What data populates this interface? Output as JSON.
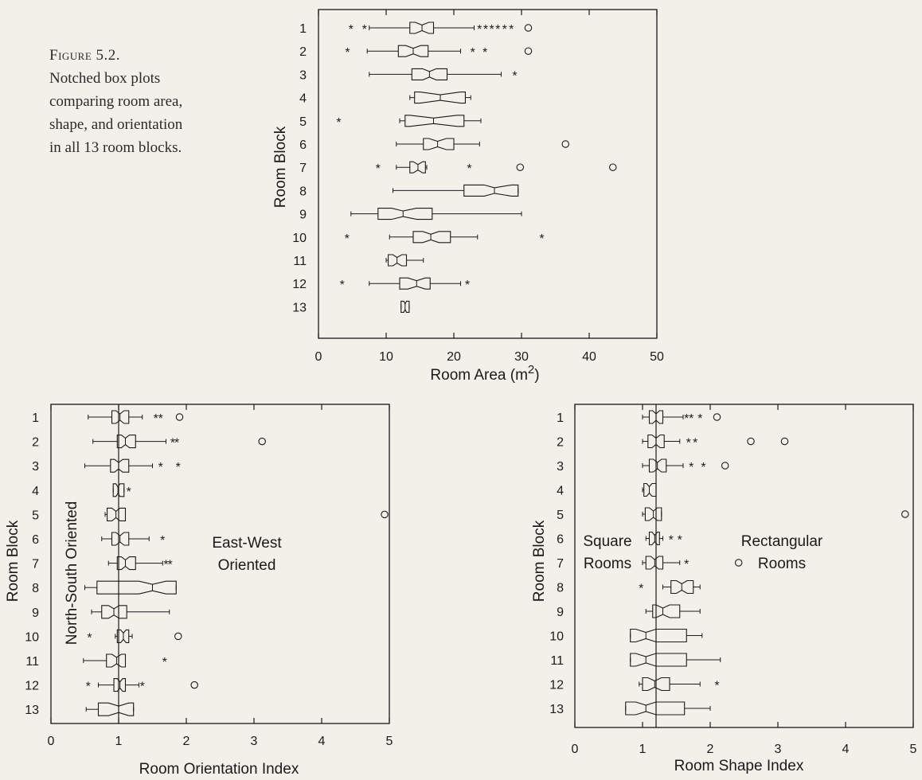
{
  "caption": {
    "figure_label": "Figure 5.2.",
    "lines": [
      "Notched box plots",
      "comparing room area,",
      "shape, and orientation",
      "in all 13 room blocks."
    ]
  },
  "chart_data": [
    {
      "type": "box",
      "xlabel": "Room Area (m2)",
      "ylabel": "Room Block",
      "xlim": [
        0,
        50
      ],
      "xticks": [
        "0",
        "10",
        "20",
        "30",
        "40",
        "50"
      ],
      "categories": [
        "1",
        "2",
        "3",
        "4",
        "5",
        "6",
        "7",
        "8",
        "9",
        "10",
        "11",
        "12",
        "13"
      ],
      "boxes": [
        {
          "whisker": [
            7.5,
            23
          ],
          "box": [
            13.5,
            17
          ],
          "median": 15.3,
          "notch": [
            14.3,
            16.3
          ],
          "stars": [
            4.8,
            6.8,
            23.8,
            24.7,
            25.6,
            26.5,
            27.5,
            28.5
          ],
          "circles": [
            31
          ]
        },
        {
          "whisker": [
            7.2,
            21
          ],
          "box": [
            11.8,
            16.2
          ],
          "median": 14,
          "notch": [
            12.9,
            15.1
          ],
          "stars": [
            4.3,
            22.8,
            24.6
          ],
          "circles": [
            31
          ]
        },
        {
          "whisker": [
            7.5,
            27
          ],
          "box": [
            13.8,
            19
          ],
          "median": 16.4,
          "notch": [
            15.4,
            17.4
          ],
          "stars": [
            29
          ],
          "circles": []
        },
        {
          "whisker": [
            13.5,
            22.5
          ],
          "box": [
            14.2,
            21.7
          ],
          "median": 18,
          "notch": [
            15,
            21
          ],
          "stars": [],
          "circles": []
        },
        {
          "whisker": [
            12,
            24
          ],
          "box": [
            12.8,
            21.5
          ],
          "median": 17,
          "notch": [
            13.5,
            20.5
          ],
          "stars": [
            3
          ],
          "circles": []
        },
        {
          "whisker": [
            11.5,
            23.8
          ],
          "box": [
            15.5,
            20
          ],
          "median": 17.6,
          "notch": [
            16.3,
            18.9
          ],
          "stars": [],
          "circles": [
            36.5
          ]
        },
        {
          "whisker": [
            11.5,
            16
          ],
          "box": [
            13.5,
            15.8
          ],
          "median": 14.7,
          "notch": [
            14,
            15.4
          ],
          "stars": [
            8.8,
            22.3
          ],
          "circles": [
            29.8,
            43.5
          ]
        },
        {
          "whisker": [
            11,
            29.5
          ],
          "box": [
            21.5,
            29.5
          ],
          "median": 26,
          "notch": [
            24.5,
            28.5
          ],
          "stars": [],
          "circles": []
        },
        {
          "whisker": [
            4.8,
            30
          ],
          "box": [
            8.8,
            16.8
          ],
          "median": 12.5,
          "notch": [
            10.8,
            14.5
          ],
          "stars": [],
          "circles": []
        },
        {
          "whisker": [
            10.5,
            23.5
          ],
          "box": [
            14,
            19.5
          ],
          "median": 16.6,
          "notch": [
            15.4,
            17.8
          ],
          "stars": [
            4.2,
            33
          ],
          "circles": []
        },
        {
          "whisker": [
            10,
            15.5
          ],
          "box": [
            10.3,
            13
          ],
          "median": 11.6,
          "notch": [
            11,
            12.3
          ],
          "stars": [],
          "circles": []
        },
        {
          "whisker": [
            7.5,
            21
          ],
          "box": [
            12,
            16.5
          ],
          "median": 14.5,
          "notch": [
            13.2,
            15.8
          ],
          "stars": [
            3.5,
            22
          ],
          "circles": []
        },
        {
          "whisker": [
            12.2,
            13.4
          ],
          "box": [
            12.2,
            13.4
          ],
          "median": 12.8,
          "notch": [
            12.6,
            13
          ],
          "stars": [],
          "circles": []
        }
      ]
    },
    {
      "type": "box",
      "xlabel": "Room Orientation Index",
      "ylabel": "Room Block",
      "xlim": [
        0,
        5
      ],
      "xticks": [
        "0",
        "1",
        "2",
        "3",
        "4",
        "5"
      ],
      "reference_line": 1,
      "annotations": [
        "North-South Oriented",
        "East-West",
        "Oriented"
      ],
      "categories": [
        "1",
        "2",
        "3",
        "4",
        "5",
        "6",
        "7",
        "8",
        "9",
        "10",
        "11",
        "12",
        "13"
      ],
      "boxes": [
        {
          "whisker": [
            0.55,
            1.35
          ],
          "box": [
            0.9,
            1.15
          ],
          "median": 1.02,
          "notch": [
            0.96,
            1.08
          ],
          "stars": [
            1.55,
            1.62
          ],
          "circles": [
            1.9
          ]
        },
        {
          "whisker": [
            0.62,
            1.7
          ],
          "box": [
            0.98,
            1.25
          ],
          "median": 1.1,
          "notch": [
            1.04,
            1.16
          ],
          "stars": [
            1.8,
            1.86
          ],
          "circles": [
            3.12
          ]
        },
        {
          "whisker": [
            0.5,
            1.5
          ],
          "box": [
            0.88,
            1.15
          ],
          "median": 1.0,
          "notch": [
            0.94,
            1.06
          ],
          "stars": [
            1.62,
            1.88
          ],
          "circles": []
        },
        {
          "whisker": [
            0.92,
            1.08
          ],
          "box": [
            0.92,
            1.08
          ],
          "median": 0.99,
          "notch": [
            0.96,
            1.02
          ],
          "stars": [
            1.15
          ],
          "circles": []
        },
        {
          "whisker": [
            0.8,
            1.1
          ],
          "box": [
            0.83,
            1.1
          ],
          "median": 0.96,
          "notch": [
            0.9,
            1.02
          ],
          "stars": [],
          "circles": [
            4.93
          ]
        },
        {
          "whisker": [
            0.75,
            1.45
          ],
          "box": [
            0.9,
            1.15
          ],
          "median": 1.02,
          "notch": [
            0.96,
            1.08
          ],
          "stars": [
            1.65
          ],
          "circles": []
        },
        {
          "whisker": [
            0.85,
            1.65
          ],
          "box": [
            0.98,
            1.25
          ],
          "median": 1.1,
          "notch": [
            1.04,
            1.16
          ],
          "stars": [
            1.7,
            1.76
          ],
          "circles": []
        },
        {
          "whisker": [
            0.5,
            1.85
          ],
          "box": [
            0.68,
            1.85
          ],
          "median": 1.5,
          "notch": [
            1.3,
            1.7
          ],
          "stars": [],
          "circles": []
        },
        {
          "whisker": [
            0.6,
            1.75
          ],
          "box": [
            0.75,
            1.12
          ],
          "median": 0.93,
          "notch": [
            0.85,
            1.01
          ],
          "stars": [],
          "circles": []
        },
        {
          "whisker": [
            0.95,
            1.2
          ],
          "box": [
            0.98,
            1.15
          ],
          "median": 1.07,
          "notch": [
            1.03,
            1.11
          ],
          "stars": [
            0.57
          ],
          "circles": [
            1.88
          ]
        },
        {
          "whisker": [
            0.48,
            1.1
          ],
          "box": [
            0.82,
            1.1
          ],
          "median": 0.97,
          "notch": [
            0.9,
            1.04
          ],
          "stars": [
            1.68
          ],
          "circles": []
        },
        {
          "whisker": [
            0.7,
            1.3
          ],
          "box": [
            0.93,
            1.1
          ],
          "median": 1.02,
          "notch": [
            0.98,
            1.06
          ],
          "stars": [
            0.55,
            1.35
          ],
          "circles": [
            2.12
          ]
        },
        {
          "whisker": [
            0.52,
            1.22
          ],
          "box": [
            0.7,
            1.22
          ],
          "median": 1.0,
          "notch": [
            0.85,
            1.15
          ],
          "stars": [],
          "circles": []
        }
      ]
    },
    {
      "type": "box",
      "xlabel": "Room Shape Index",
      "ylabel": "Room Block",
      "xlim": [
        0,
        5
      ],
      "xticks": [
        "0",
        "1",
        "2",
        "3",
        "4",
        "5"
      ],
      "reference_line": 1.2,
      "annotations": [
        "Square",
        "Rooms",
        "Rectangular",
        "Rooms"
      ],
      "categories": [
        "1",
        "2",
        "3",
        "4",
        "5",
        "6",
        "7",
        "8",
        "9",
        "10",
        "11",
        "12",
        "13"
      ],
      "boxes": [
        {
          "whisker": [
            1.0,
            1.6
          ],
          "box": [
            1.1,
            1.3
          ],
          "median": 1.2,
          "notch": [
            1.15,
            1.25
          ],
          "stars": [
            1.65,
            1.72,
            1.85
          ],
          "circles": [
            2.1
          ]
        },
        {
          "whisker": [
            1.0,
            1.55
          ],
          "box": [
            1.08,
            1.32
          ],
          "median": 1.2,
          "notch": [
            1.14,
            1.26
          ],
          "stars": [
            1.68,
            1.78
          ],
          "circles": [
            2.6,
            3.1
          ]
        },
        {
          "whisker": [
            1.0,
            1.6
          ],
          "box": [
            1.1,
            1.35
          ],
          "median": 1.22,
          "notch": [
            1.16,
            1.28
          ],
          "stars": [
            1.72,
            1.9
          ],
          "circles": [
            2.22
          ]
        },
        {
          "whisker": [
            1.0,
            1.2
          ],
          "box": [
            1.02,
            1.2
          ],
          "median": 1.1,
          "notch": [
            1.06,
            1.14
          ],
          "stars": [],
          "circles": []
        },
        {
          "whisker": [
            1.0,
            1.28
          ],
          "box": [
            1.04,
            1.28
          ],
          "median": 1.16,
          "notch": [
            1.1,
            1.22
          ],
          "stars": [],
          "circles": [
            4.88
          ]
        },
        {
          "whisker": [
            1.05,
            1.3
          ],
          "box": [
            1.1,
            1.25
          ],
          "median": 1.18,
          "notch": [
            1.14,
            1.22
          ],
          "stars": [
            1.42,
            1.55
          ],
          "circles": []
        },
        {
          "whisker": [
            1.0,
            1.55
          ],
          "box": [
            1.05,
            1.3
          ],
          "median": 1.18,
          "notch": [
            1.12,
            1.24
          ],
          "stars": [
            1.65
          ],
          "circles": [
            2.42
          ]
        },
        {
          "whisker": [
            1.3,
            1.85
          ],
          "box": [
            1.42,
            1.75
          ],
          "median": 1.58,
          "notch": [
            1.5,
            1.66
          ],
          "stars": [
            0.98
          ],
          "circles": []
        },
        {
          "whisker": [
            1.05,
            1.85
          ],
          "box": [
            1.15,
            1.55
          ],
          "median": 1.3,
          "notch": [
            1.2,
            1.4
          ],
          "stars": [],
          "circles": []
        },
        {
          "whisker": [
            0.82,
            1.88
          ],
          "box": [
            0.82,
            1.65
          ],
          "median": 1.05,
          "notch": [
            0.9,
            1.2
          ],
          "stars": [],
          "circles": []
        },
        {
          "whisker": [
            0.82,
            2.15
          ],
          "box": [
            0.82,
            1.65
          ],
          "median": 1.05,
          "notch": [
            0.9,
            1.2
          ],
          "stars": [],
          "circles": []
        },
        {
          "whisker": [
            0.95,
            1.85
          ],
          "box": [
            1.0,
            1.4
          ],
          "median": 1.18,
          "notch": [
            1.08,
            1.28
          ],
          "stars": [
            2.1
          ],
          "circles": []
        },
        {
          "whisker": [
            0.75,
            2.0
          ],
          "box": [
            0.75,
            1.62
          ],
          "median": 1.05,
          "notch": [
            0.9,
            1.2
          ],
          "stars": [],
          "circles": []
        }
      ]
    }
  ]
}
